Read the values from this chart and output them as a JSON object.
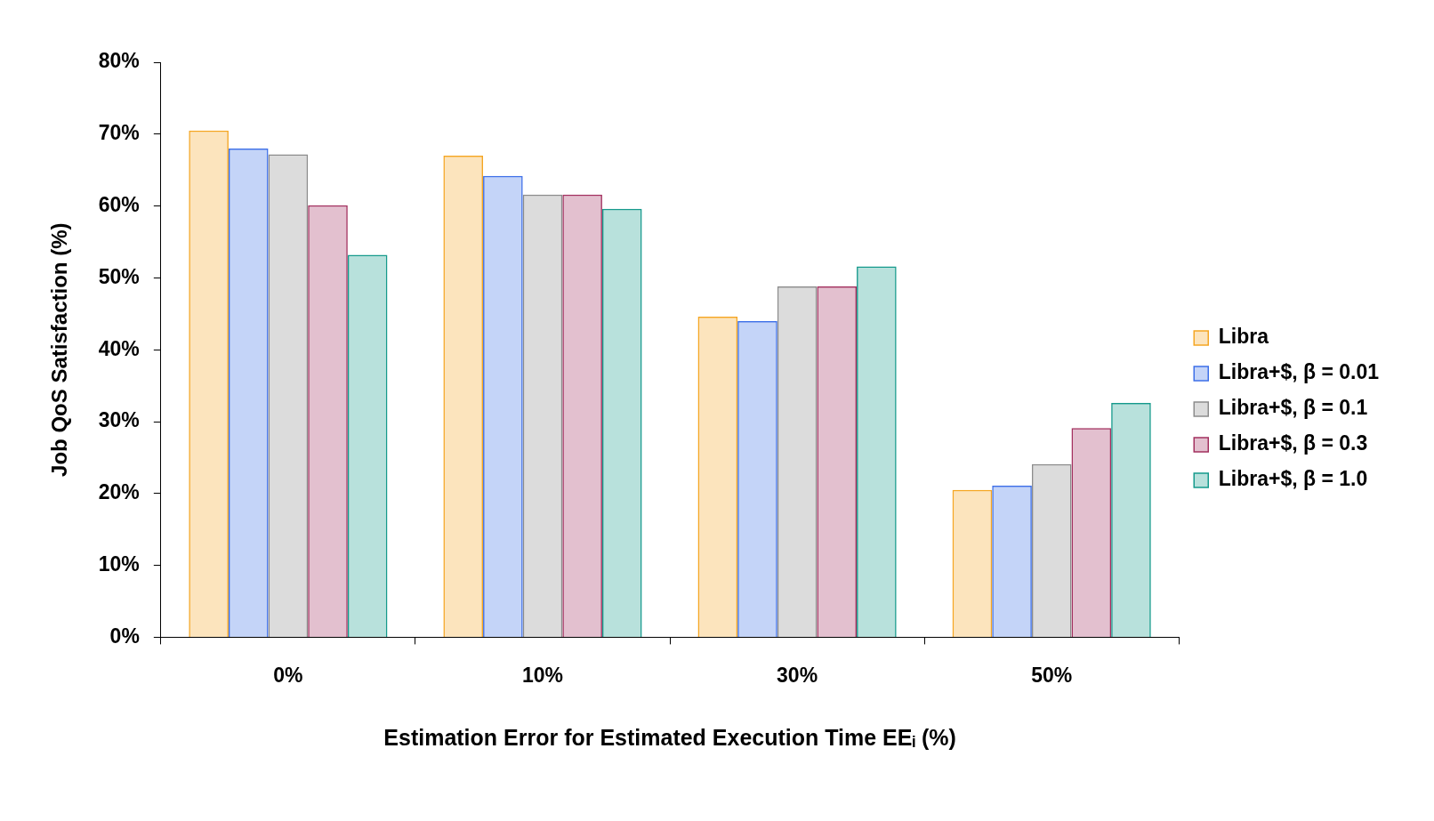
{
  "chart_data": {
    "type": "bar",
    "xlabel": "Estimation Error for Estimated Execution Time EEᵢ (%)",
    "ylabel": "Job QoS Satisfaction (%)",
    "categories": [
      "0%",
      "10%",
      "30%",
      "50%"
    ],
    "series": [
      {
        "name": "Libra",
        "color": "#f5a623",
        "values": [
          70.5,
          67,
          44.6,
          20.5
        ]
      },
      {
        "name": "Libra+$, β = 0.01",
        "color": "#3d6fe8",
        "values": [
          68,
          64.2,
          44,
          21.1
        ]
      },
      {
        "name": "Libra+$, β = 0.1",
        "color": "#8c8c8c",
        "values": [
          67.2,
          61.6,
          48.8,
          24.1
        ]
      },
      {
        "name": "Libra+$, β = 0.3",
        "color": "#a3305f",
        "values": [
          60.1,
          61.6,
          48.8,
          29.1
        ]
      },
      {
        "name": "Libra+$, β = 1.0",
        "color": "#159a8c",
        "values": [
          53.2,
          59.6,
          51.6,
          32.6
        ]
      }
    ],
    "ylim": [
      0,
      80
    ],
    "yticks": [
      {
        "value": 0,
        "label": "0%"
      },
      {
        "value": 10,
        "label": "10%"
      },
      {
        "value": 20,
        "label": "20%"
      },
      {
        "value": 30,
        "label": "30%"
      },
      {
        "value": 40,
        "label": "40%"
      },
      {
        "value": 50,
        "label": "50%"
      },
      {
        "value": 60,
        "label": "60%"
      },
      {
        "value": 70,
        "label": "70%"
      },
      {
        "value": 80,
        "label": "80%"
      }
    ],
    "grid": false,
    "legend": "right"
  }
}
